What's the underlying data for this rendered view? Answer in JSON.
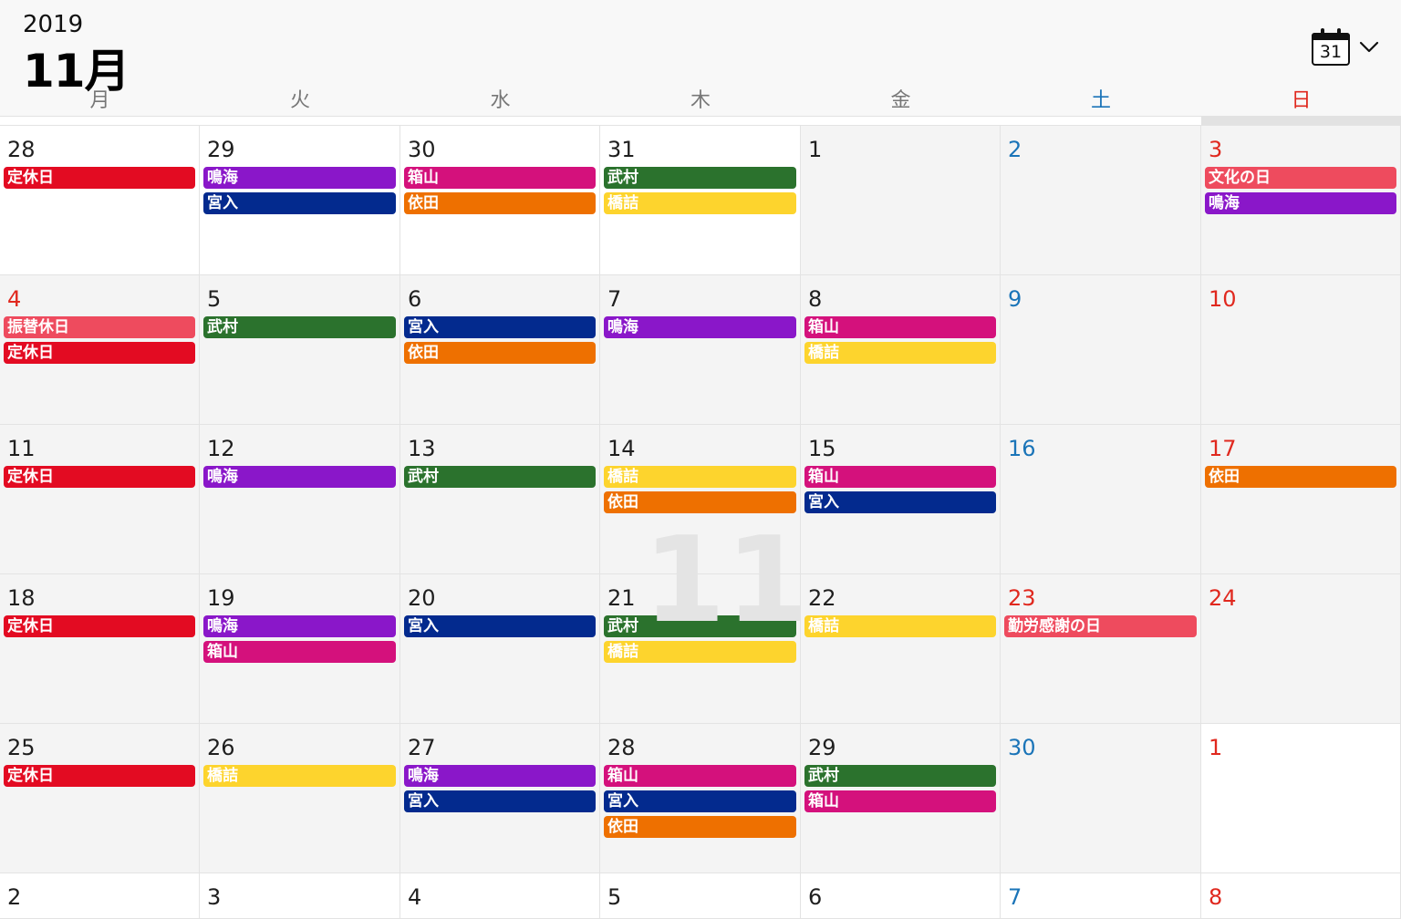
{
  "header": {
    "year": "2019",
    "month": "11月",
    "today_button": {
      "icon": "calendar-icon",
      "day": "31"
    },
    "view_menu_icon": "chevron-down-icon"
  },
  "weekdays": [
    {
      "label": "月",
      "kind": "weekday"
    },
    {
      "label": "火",
      "kind": "weekday"
    },
    {
      "label": "水",
      "kind": "weekday"
    },
    {
      "label": "木",
      "kind": "weekday"
    },
    {
      "label": "金",
      "kind": "weekday"
    },
    {
      "label": "土",
      "kind": "sat"
    },
    {
      "label": "日",
      "kind": "sun"
    }
  ],
  "watermark": "11",
  "calendars": {
    "定休日": "#e30b22",
    "鳴海": "#8a17c9",
    "宮入": "#032a8e",
    "箱山": "#d4117c",
    "依田": "#ee7000",
    "武村": "#2b722d",
    "橋詰": "#fdd42d",
    "文化の日": "#ee4b5e",
    "振替休日": "#ee4b5e",
    "勤労感謝の日": "#ee4b5e"
  },
  "weeks": [
    [
      {
        "day": "28",
        "kind": "weekday",
        "bg": "white",
        "events": [
          "定休日"
        ]
      },
      {
        "day": "29",
        "kind": "weekday",
        "bg": "white",
        "events": [
          "鳴海",
          "宮入"
        ]
      },
      {
        "day": "30",
        "kind": "weekday",
        "bg": "white",
        "events": [
          "箱山",
          "依田"
        ]
      },
      {
        "day": "31",
        "kind": "weekday",
        "bg": "white",
        "events": [
          "武村",
          "橋詰"
        ]
      },
      {
        "day": "1",
        "kind": "weekday",
        "bg": "gray",
        "events": []
      },
      {
        "day": "2",
        "kind": "sat",
        "bg": "gray",
        "events": []
      },
      {
        "day": "3",
        "kind": "sun",
        "bg": "gray",
        "events": [
          "文化の日",
          "鳴海"
        ]
      }
    ],
    [
      {
        "day": "4",
        "kind": "sun",
        "bg": "gray",
        "events": [
          "振替休日",
          "定休日"
        ]
      },
      {
        "day": "5",
        "kind": "weekday",
        "bg": "gray",
        "events": [
          "武村"
        ]
      },
      {
        "day": "6",
        "kind": "weekday",
        "bg": "gray",
        "events": [
          "宮入",
          "依田"
        ]
      },
      {
        "day": "7",
        "kind": "weekday",
        "bg": "gray",
        "events": [
          "鳴海"
        ]
      },
      {
        "day": "8",
        "kind": "weekday",
        "bg": "gray",
        "events": [
          "箱山",
          "橋詰"
        ]
      },
      {
        "day": "9",
        "kind": "sat",
        "bg": "gray",
        "events": []
      },
      {
        "day": "10",
        "kind": "sun",
        "bg": "gray",
        "events": []
      }
    ],
    [
      {
        "day": "11",
        "kind": "weekday",
        "bg": "gray",
        "events": [
          "定休日"
        ]
      },
      {
        "day": "12",
        "kind": "weekday",
        "bg": "gray",
        "events": [
          "鳴海"
        ]
      },
      {
        "day": "13",
        "kind": "weekday",
        "bg": "gray",
        "events": [
          "武村"
        ]
      },
      {
        "day": "14",
        "kind": "weekday",
        "bg": "gray",
        "events": [
          "橋詰",
          "依田"
        ]
      },
      {
        "day": "15",
        "kind": "weekday",
        "bg": "gray",
        "events": [
          "箱山",
          "宮入"
        ]
      },
      {
        "day": "16",
        "kind": "sat",
        "bg": "gray",
        "events": []
      },
      {
        "day": "17",
        "kind": "sun",
        "bg": "gray",
        "events": [
          "依田"
        ]
      }
    ],
    [
      {
        "day": "18",
        "kind": "weekday",
        "bg": "gray",
        "events": [
          "定休日"
        ]
      },
      {
        "day": "19",
        "kind": "weekday",
        "bg": "gray",
        "events": [
          "鳴海",
          "箱山"
        ]
      },
      {
        "day": "20",
        "kind": "weekday",
        "bg": "gray",
        "events": [
          "宮入"
        ]
      },
      {
        "day": "21",
        "kind": "weekday",
        "bg": "gray",
        "events": [
          "武村",
          "橋詰"
        ]
      },
      {
        "day": "22",
        "kind": "weekday",
        "bg": "gray",
        "events": [
          "橋詰"
        ]
      },
      {
        "day": "23",
        "kind": "sun",
        "bg": "gray",
        "events": [
          "勤労感謝の日"
        ]
      },
      {
        "day": "24",
        "kind": "sun",
        "bg": "gray",
        "events": []
      }
    ],
    [
      {
        "day": "25",
        "kind": "weekday",
        "bg": "gray",
        "events": [
          "定休日"
        ]
      },
      {
        "day": "26",
        "kind": "weekday",
        "bg": "gray",
        "events": [
          "橋詰"
        ]
      },
      {
        "day": "27",
        "kind": "weekday",
        "bg": "gray",
        "events": [
          "鳴海",
          "宮入"
        ]
      },
      {
        "day": "28",
        "kind": "weekday",
        "bg": "gray",
        "events": [
          "箱山",
          "宮入",
          "依田"
        ]
      },
      {
        "day": "29",
        "kind": "weekday",
        "bg": "gray",
        "events": [
          "武村",
          "箱山"
        ]
      },
      {
        "day": "30",
        "kind": "sat",
        "bg": "gray",
        "events": []
      },
      {
        "day": "1",
        "kind": "sun",
        "bg": "white",
        "events": []
      }
    ],
    [
      {
        "day": "2",
        "kind": "weekday",
        "bg": "white",
        "events": []
      },
      {
        "day": "3",
        "kind": "weekday",
        "bg": "white",
        "events": []
      },
      {
        "day": "4",
        "kind": "weekday",
        "bg": "white",
        "events": []
      },
      {
        "day": "5",
        "kind": "weekday",
        "bg": "white",
        "events": []
      },
      {
        "day": "6",
        "kind": "weekday",
        "bg": "white",
        "events": []
      },
      {
        "day": "7",
        "kind": "sat",
        "bg": "white",
        "events": []
      },
      {
        "day": "8",
        "kind": "sun",
        "bg": "white",
        "events": []
      }
    ]
  ]
}
